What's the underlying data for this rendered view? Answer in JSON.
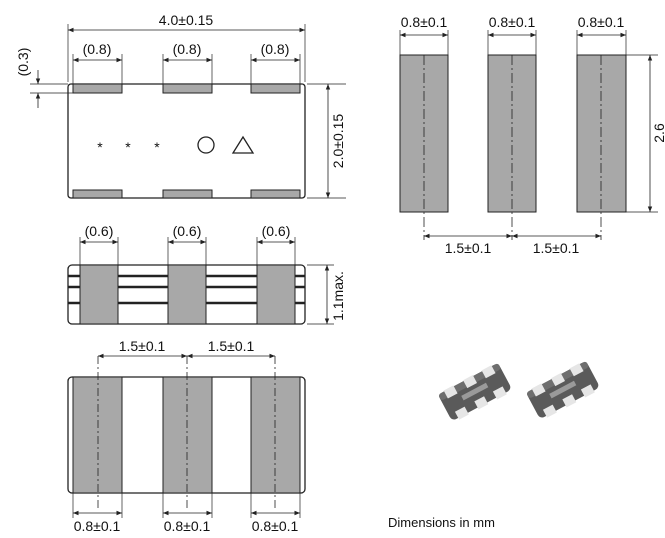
{
  "top_view": {
    "overall_length": "4.0±0.15",
    "pad_width_label": "(0.8)",
    "pad_gap_label": "(0.3)",
    "height_label": "2.0±0.15",
    "markings": [
      "*",
      "*",
      "*"
    ],
    "symbols": [
      "circle",
      "triangle"
    ]
  },
  "side_view": {
    "band_width_label": "(0.6)",
    "thickness_label": "1.1max."
  },
  "bottom_view": {
    "pitch_label": "1.5±0.1",
    "pad_width_label": "0.8±0.1"
  },
  "land_pattern": {
    "pad_width_label": "0.8±0.1",
    "pitch_label": "1.5±0.1",
    "height_label": "2.6"
  },
  "footer_note": "Dimensions in mm",
  "colors": {
    "pad": "#a8a8a8",
    "line": "#222222",
    "photo_body": "#555555"
  }
}
